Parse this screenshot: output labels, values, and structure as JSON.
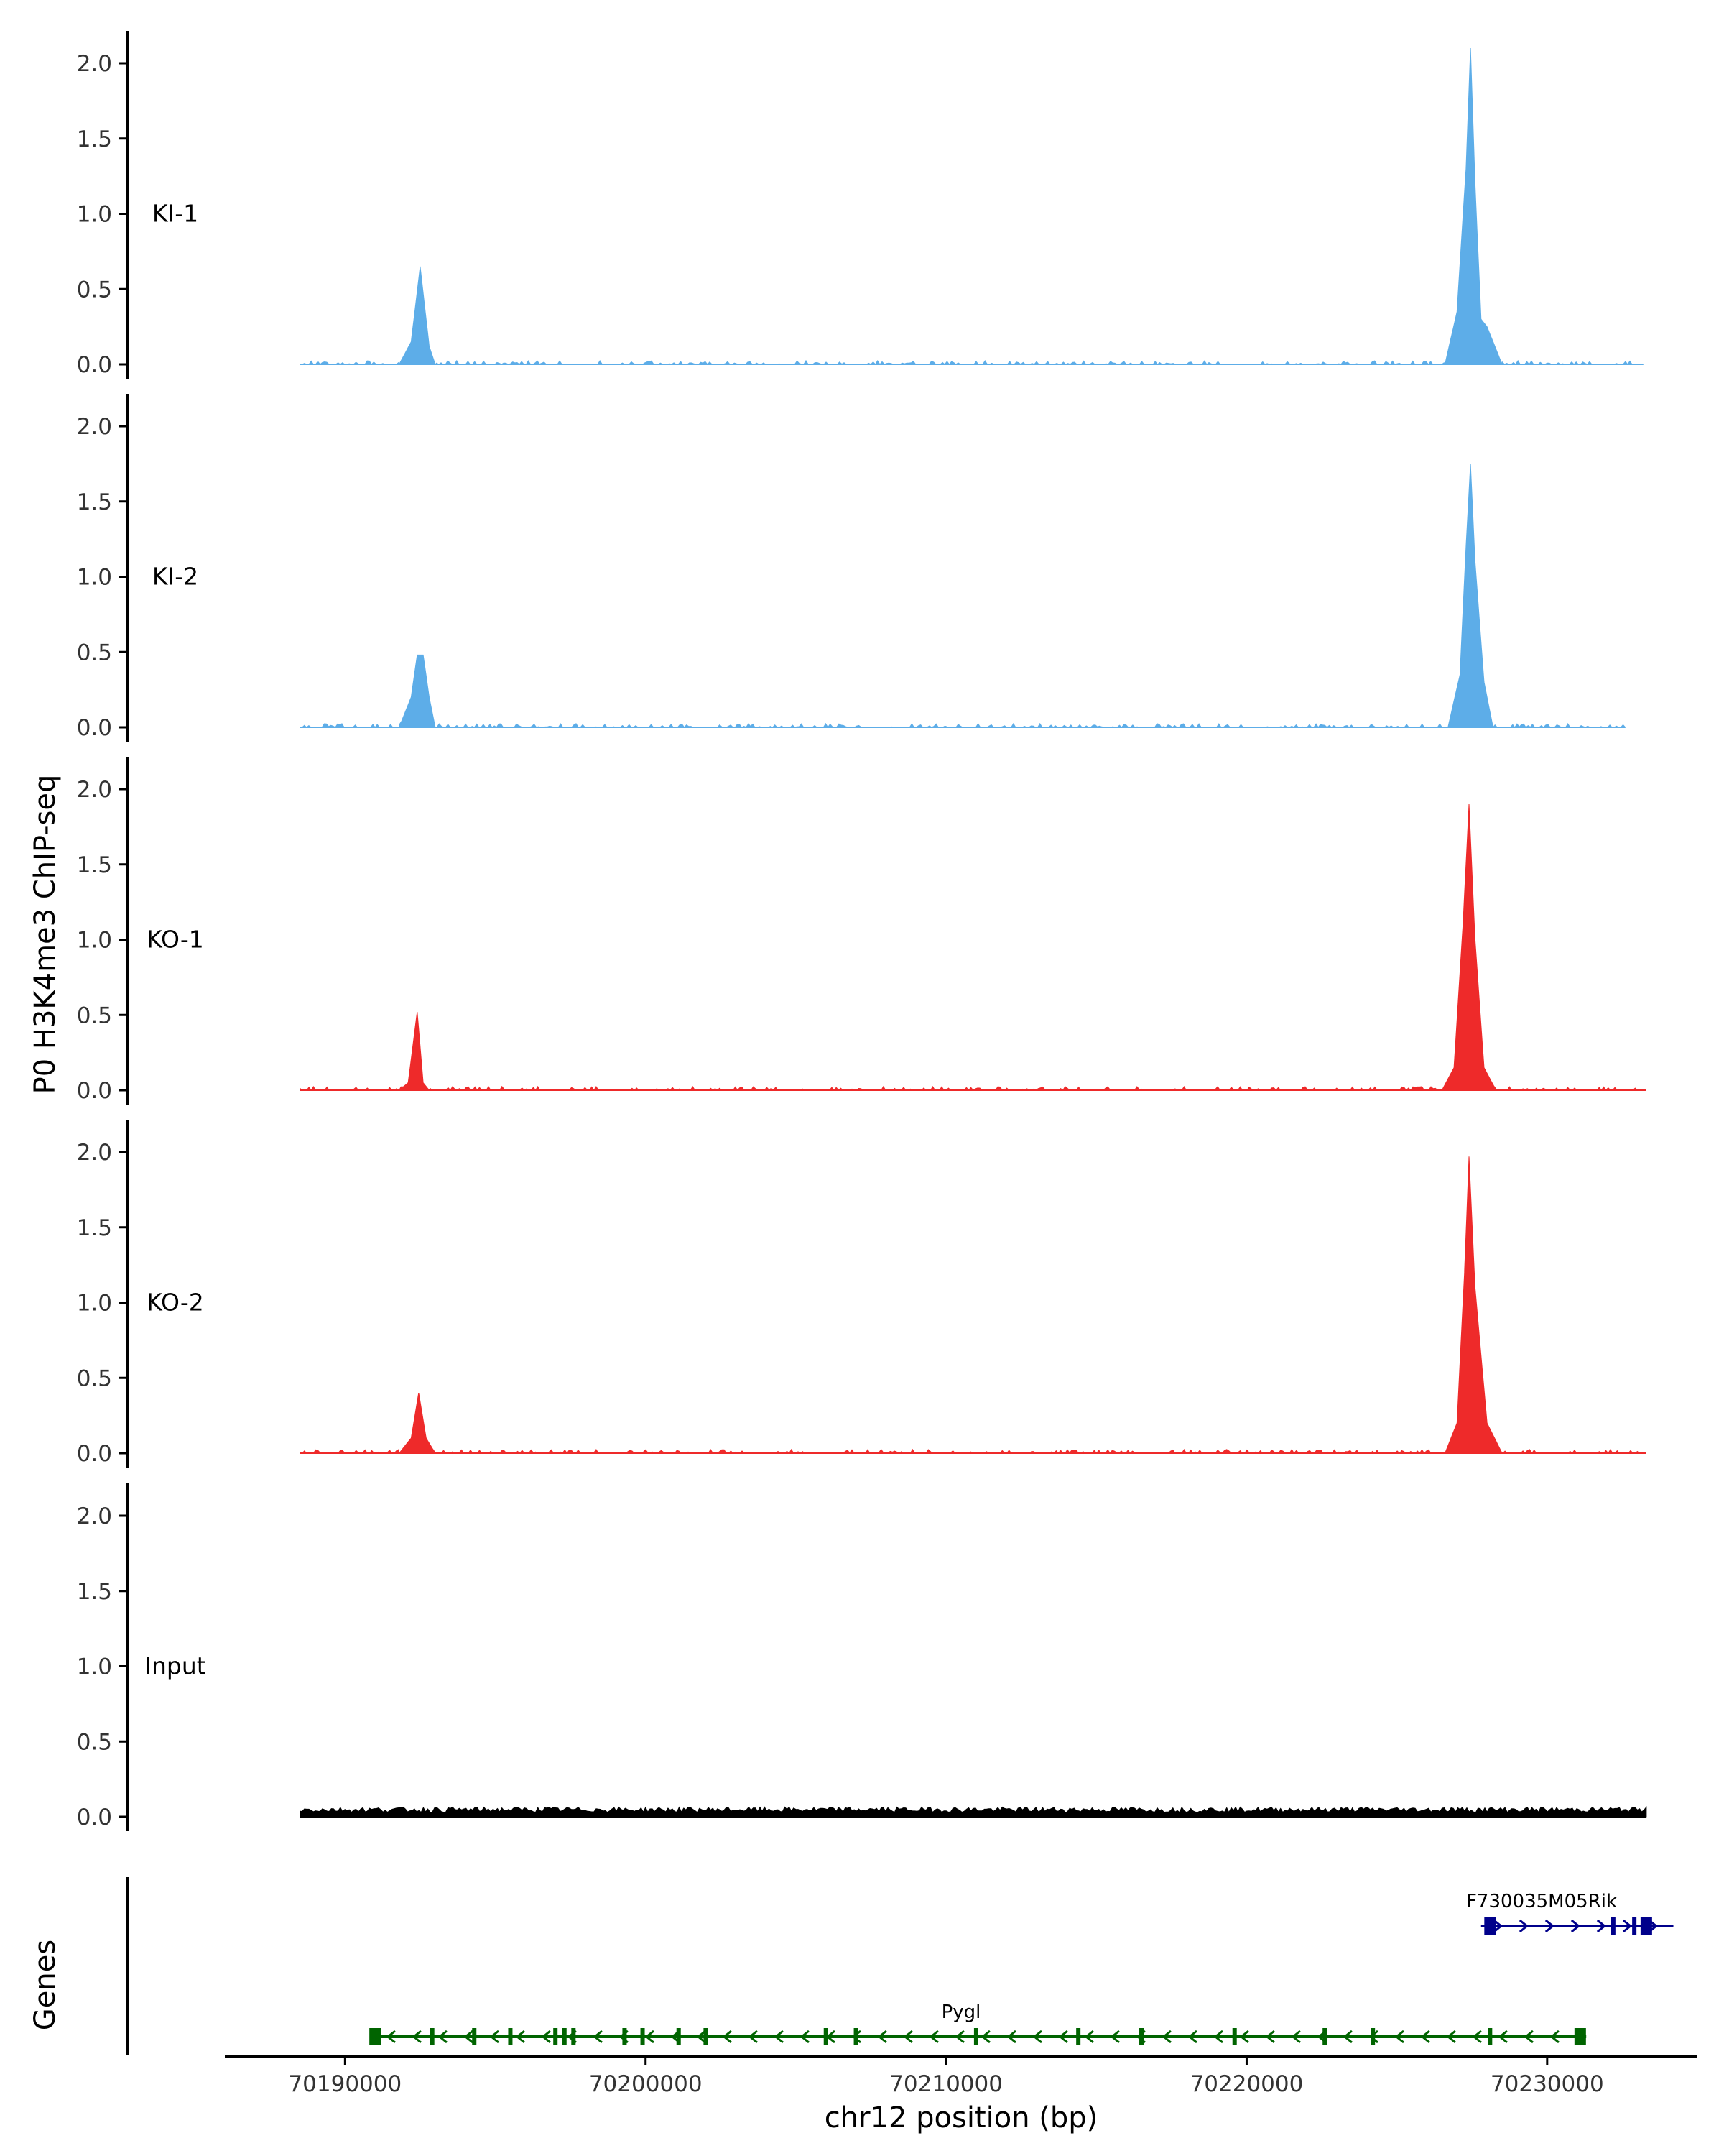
{
  "chart_data": {
    "type": "area",
    "ylabel": "P0 H3K4me3 ChIP-seq",
    "xlabel": "chr12 position (bp)",
    "xlim": [
      70186000,
      70235000
    ],
    "ylim": [
      0,
      2.2
    ],
    "y_ticks": [
      0.0,
      0.5,
      1.0,
      1.5,
      2.0
    ],
    "y_tick_labels": [
      "0.0",
      "0.5",
      "1.0",
      "1.5",
      "2.0"
    ],
    "x_ticks": [
      70190000,
      70200000,
      70210000,
      70220000,
      70230000
    ],
    "x_tick_labels": [
      "70190000",
      "70200000",
      "70210000",
      "70220000",
      "70230000"
    ],
    "colors": {
      "KI": "#5dade8",
      "KO": "#ee2a2a",
      "Input": "#000000",
      "gene_minus": "#006400",
      "gene_plus": "#00008b"
    },
    "tracks": [
      {
        "name": "KI-1",
        "color": "#5dade8",
        "x_start": 70188500,
        "x_end": 70233200,
        "x": [
          70191800,
          70192200,
          70192500,
          70192800,
          70193000,
          70226600,
          70227000,
          70227300,
          70227450,
          70227600,
          70227800,
          70228000,
          70228500
        ],
        "y": [
          0.0,
          0.15,
          0.65,
          0.12,
          0.0,
          0.0,
          0.35,
          1.3,
          2.1,
          1.2,
          0.3,
          0.25,
          0.0
        ]
      },
      {
        "name": "KI-2",
        "color": "#5dade8",
        "x_start": 70188500,
        "x_end": 70232600,
        "x": [
          70191800,
          70192200,
          70192400,
          70192600,
          70192800,
          70193000,
          70226700,
          70227100,
          70227300,
          70227450,
          70227600,
          70227900,
          70228200
        ],
        "y": [
          0.0,
          0.2,
          0.48,
          0.48,
          0.2,
          0.0,
          0.0,
          0.35,
          1.2,
          1.75,
          1.1,
          0.3,
          0.0
        ]
      },
      {
        "name": "KO-1",
        "color": "#ee2a2a",
        "x_start": 70188500,
        "x_end": 70233300,
        "x": [
          70191800,
          70192100,
          70192400,
          70192600,
          70192800,
          70226500,
          70226900,
          70227200,
          70227400,
          70227600,
          70227900,
          70228300
        ],
        "y": [
          0.0,
          0.05,
          0.52,
          0.05,
          0.0,
          0.0,
          0.15,
          1.1,
          1.9,
          1.0,
          0.15,
          0.0
        ]
      },
      {
        "name": "KO-2",
        "color": "#ee2a2a",
        "x_start": 70188500,
        "x_end": 70233300,
        "x": [
          70191800,
          70192200,
          70192450,
          70192700,
          70193000,
          70226600,
          70227000,
          70227250,
          70227400,
          70227600,
          70228000,
          70228500
        ],
        "y": [
          0.0,
          0.1,
          0.4,
          0.1,
          0.0,
          0.0,
          0.2,
          1.2,
          1.97,
          1.1,
          0.2,
          0.0
        ]
      },
      {
        "name": "Input",
        "color": "#000000",
        "x_start": 70188500,
        "x_end": 70233300,
        "x": [],
        "y": [],
        "baseline_level": 0.03
      }
    ],
    "genes_panel": {
      "label": "Genes",
      "genes": [
        {
          "name": "Pygl",
          "strand": "-",
          "color": "#006400",
          "start": 70190900,
          "end": 70231300,
          "exons": [
            70191000,
            70192900,
            70194300,
            70195500,
            70197000,
            70197300,
            70197600,
            70199300,
            70199900,
            70201100,
            70202000,
            70206000,
            70207000,
            70211000,
            70214400,
            70216500,
            70219600,
            70222600,
            70224200,
            70228100,
            70231100
          ]
        },
        {
          "name": "F730035M05Rik",
          "strand": "+",
          "color": "#00008b",
          "start": 70227800,
          "end": 70234200,
          "exons": [
            70228100,
            70232200,
            70232900,
            70233300
          ]
        }
      ]
    }
  }
}
